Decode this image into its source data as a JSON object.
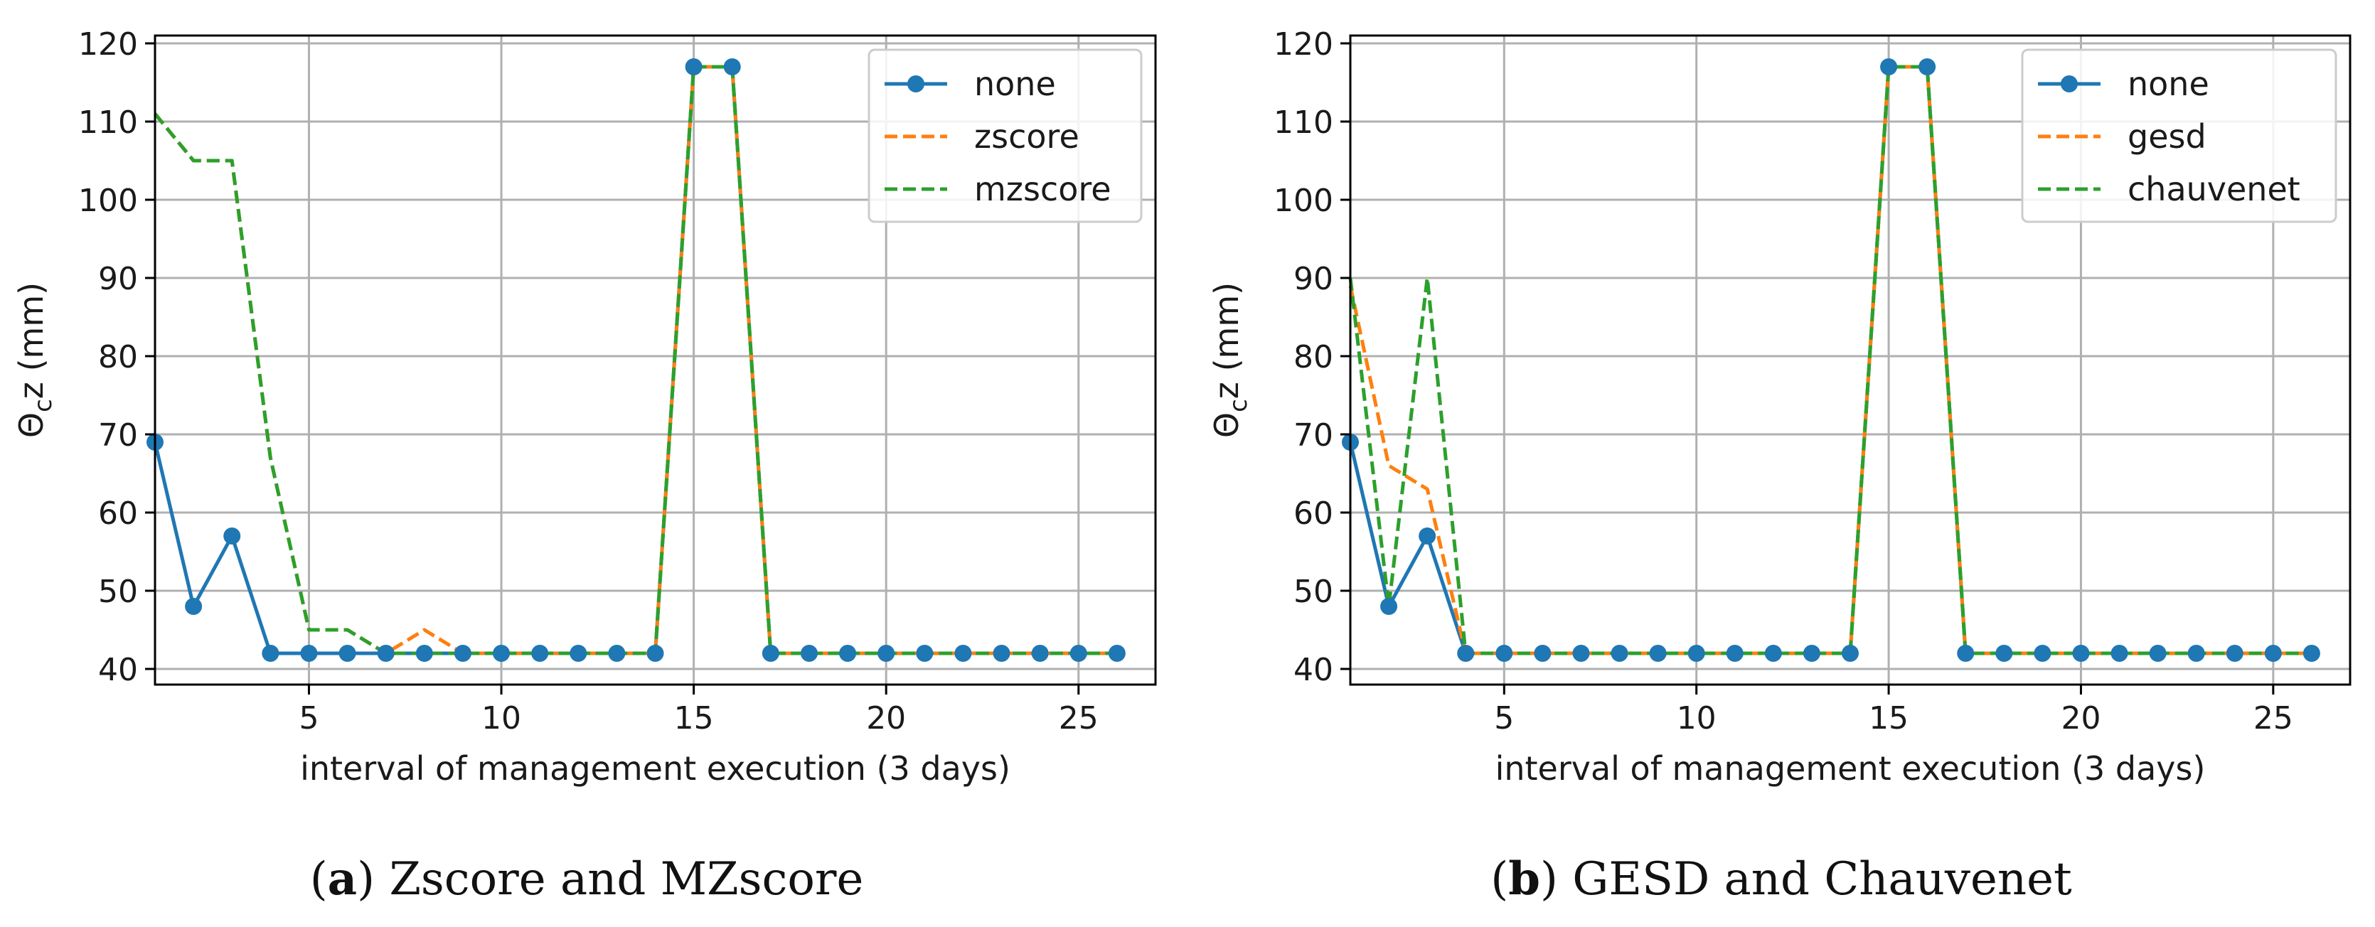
{
  "colors": {
    "none": "#1f77b4",
    "second": "#ff7f0e",
    "third": "#2ca02c",
    "grid": "#b0b0b0",
    "axis": "#000000"
  },
  "chart_data": [
    {
      "type": "line",
      "ylabel_main": "Θ",
      "ylabel_sub": "c",
      "ylabel_rest": "z (mm)",
      "xlabel": "interval of management execution (3 days)",
      "xlim": [
        1,
        27
      ],
      "ylim": [
        38,
        121
      ],
      "xticks": [
        5,
        10,
        15,
        20,
        25
      ],
      "yticks": [
        40,
        50,
        60,
        70,
        80,
        90,
        100,
        110,
        120
      ],
      "grid": true,
      "legend_position": "top-right",
      "caption_letter": "a",
      "caption_open": "(",
      "caption_close": ")",
      "caption_text": " Zscore and MZscore",
      "series": [
        {
          "name": "none",
          "style": "solid-marker",
          "x": [
            1,
            2,
            3,
            4,
            5,
            6,
            7,
            8,
            9,
            10,
            11,
            12,
            13,
            14,
            15,
            16,
            17,
            18,
            19,
            20,
            21,
            22,
            23,
            24,
            25,
            26
          ],
          "values": [
            69,
            48,
            57,
            42,
            42,
            42,
            42,
            42,
            42,
            42,
            42,
            42,
            42,
            42,
            117,
            117,
            42,
            42,
            42,
            42,
            42,
            42,
            42,
            42,
            42,
            42
          ]
        },
        {
          "name": "zscore",
          "style": "dashed",
          "x": [
            1,
            2,
            3,
            4,
            5,
            6,
            7,
            8,
            9,
            10,
            11,
            12,
            13,
            14,
            15,
            16,
            17,
            18,
            19,
            20,
            21,
            22,
            23,
            24,
            25,
            26
          ],
          "values": [
            111,
            105,
            105,
            67,
            45,
            45,
            42,
            45,
            42,
            42,
            42,
            42,
            42,
            42,
            117,
            117,
            42,
            42,
            42,
            42,
            42,
            42,
            42,
            42,
            42,
            42
          ]
        },
        {
          "name": "mzscore",
          "style": "dashed",
          "x": [
            1,
            2,
            3,
            4,
            5,
            6,
            7,
            8,
            9,
            10,
            11,
            12,
            13,
            14,
            15,
            16,
            17,
            18,
            19,
            20,
            21,
            22,
            23,
            24,
            25,
            26
          ],
          "values": [
            111,
            105,
            105,
            67,
            45,
            45,
            42,
            42,
            42,
            42,
            42,
            42,
            42,
            42,
            117,
            117,
            42,
            42,
            42,
            42,
            42,
            42,
            42,
            42,
            42,
            42
          ]
        }
      ]
    },
    {
      "type": "line",
      "ylabel_main": "Θ",
      "ylabel_sub": "c",
      "ylabel_rest": "z (mm)",
      "xlabel": "interval of management execution (3 days)",
      "xlim": [
        1,
        27
      ],
      "ylim": [
        38,
        121
      ],
      "xticks": [
        5,
        10,
        15,
        20,
        25
      ],
      "yticks": [
        40,
        50,
        60,
        70,
        80,
        90,
        100,
        110,
        120
      ],
      "grid": true,
      "legend_position": "top-right",
      "caption_letter": "b",
      "caption_open": "(",
      "caption_close": ")",
      "caption_text": " GESD and Chauvenet",
      "series": [
        {
          "name": "none",
          "style": "solid-marker",
          "x": [
            1,
            2,
            3,
            4,
            5,
            6,
            7,
            8,
            9,
            10,
            11,
            12,
            13,
            14,
            15,
            16,
            17,
            18,
            19,
            20,
            21,
            22,
            23,
            24,
            25,
            26
          ],
          "values": [
            69,
            48,
            57,
            42,
            42,
            42,
            42,
            42,
            42,
            42,
            42,
            42,
            42,
            42,
            117,
            117,
            42,
            42,
            42,
            42,
            42,
            42,
            42,
            42,
            42,
            42
          ]
        },
        {
          "name": "gesd",
          "style": "dashed",
          "x": [
            1,
            2,
            3,
            4,
            5,
            6,
            7,
            8,
            9,
            10,
            11,
            12,
            13,
            14,
            15,
            16,
            17,
            18,
            19,
            20,
            21,
            22,
            23,
            24,
            25,
            26
          ],
          "values": [
            89,
            66,
            63,
            42,
            42,
            42,
            42,
            42,
            42,
            42,
            42,
            42,
            42,
            42,
            117,
            117,
            42,
            42,
            42,
            42,
            42,
            42,
            42,
            42,
            42,
            42
          ]
        },
        {
          "name": "chauvenet",
          "style": "dashed",
          "x": [
            1,
            2,
            3,
            4,
            5,
            6,
            7,
            8,
            9,
            10,
            11,
            12,
            13,
            14,
            15,
            16,
            17,
            18,
            19,
            20,
            21,
            22,
            23,
            24,
            25,
            26
          ],
          "values": [
            90,
            48,
            90,
            42,
            42,
            42,
            42,
            42,
            42,
            42,
            42,
            42,
            42,
            42,
            117,
            117,
            42,
            42,
            42,
            42,
            42,
            42,
            42,
            42,
            42,
            42
          ]
        }
      ]
    }
  ]
}
